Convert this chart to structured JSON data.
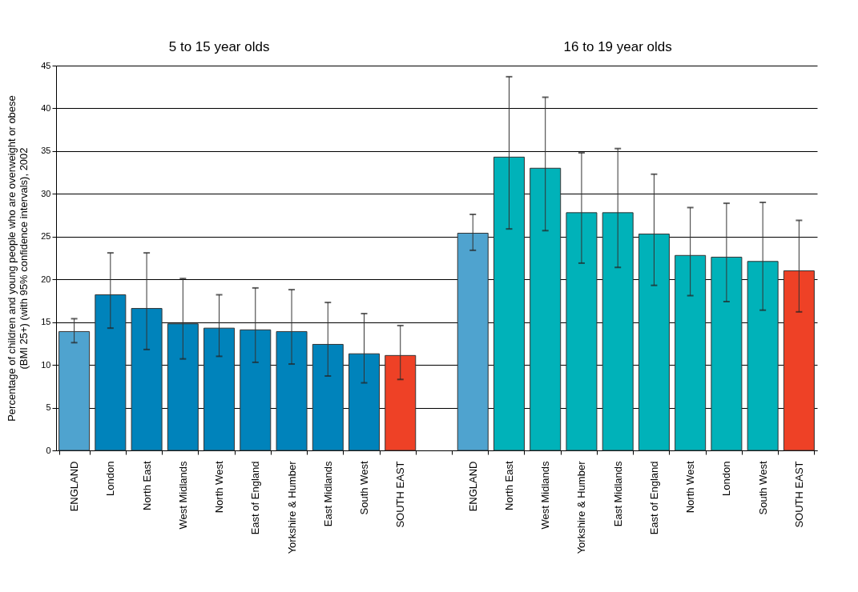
{
  "chart_data": {
    "type": "bar",
    "ylabel": "Percentage of children and young people who are overweight or obese\n(BMI 25+) (with 95% confidence intervals), 2002",
    "annotations": [
      "5 to 15 year olds",
      "16 to 19 year olds"
    ],
    "categories": [
      "ENGLAND",
      "London",
      "North East",
      "West Midlands",
      "North West",
      "East of England",
      "Yorkshire & Humber",
      "East Midlands",
      "South West",
      "SOUTH EAST",
      null,
      "ENGLAND",
      "North East",
      "West Midlands",
      "Yorkshire & Humber",
      "East Midlands",
      "East of England",
      "North West",
      "London",
      "South West",
      "SOUTH EAST"
    ],
    "values": [
      13.9,
      18.2,
      16.6,
      14.8,
      14.3,
      14.1,
      13.9,
      12.4,
      11.3,
      11.1,
      null,
      25.4,
      34.3,
      33.0,
      27.8,
      27.8,
      25.3,
      22.8,
      22.6,
      22.1,
      21.0
    ],
    "errors": [
      [
        12.6,
        15.4
      ],
      [
        14.3,
        23.1
      ],
      [
        11.8,
        23.1
      ],
      [
        10.7,
        20.1
      ],
      [
        11.0,
        18.2
      ],
      [
        10.3,
        19.0
      ],
      [
        10.1,
        18.8
      ],
      [
        8.7,
        17.3
      ],
      [
        7.9,
        16.0
      ],
      [
        8.3,
        14.6
      ],
      null,
      [
        23.4,
        27.6
      ],
      [
        25.9,
        43.7
      ],
      [
        25.7,
        41.3
      ],
      [
        21.9,
        34.8
      ],
      [
        21.4,
        35.3
      ],
      [
        19.3,
        32.3
      ],
      [
        18.1,
        28.4
      ],
      [
        17.4,
        28.9
      ],
      [
        16.4,
        29.0
      ],
      [
        16.2,
        26.9
      ]
    ],
    "colors": [
      "#4fa3cf",
      "#0083bb",
      "#0083bb",
      "#0083bb",
      "#0083bb",
      "#0083bb",
      "#0083bb",
      "#0083bb",
      "#0083bb",
      "#ee4126",
      null,
      "#4fa3cf",
      "#00b2b9",
      "#00b2b9",
      "#00b2b9",
      "#00b2b9",
      "#00b2b9",
      "#00b2b9",
      "#00b2b9",
      "#00b2b9",
      "#ee4126"
    ],
    "ylim": [
      0,
      45
    ],
    "yticks": [
      0,
      5,
      10,
      15,
      20,
      25,
      30,
      35,
      40,
      45
    ],
    "grid": "y"
  }
}
